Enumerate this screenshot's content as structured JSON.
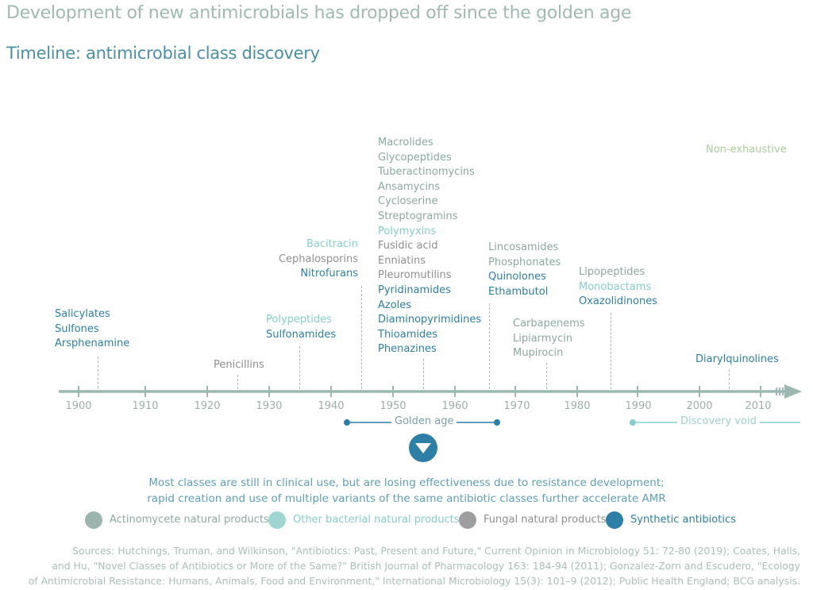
{
  "title": "Development of new antimicrobials has dropped off since the golden age",
  "subtitle": "Timeline: antimicrobial class discovery",
  "note": "Non-exhaustive",
  "colors": {
    "actinomycete": "#8aa9a3",
    "other_bacterial": "#86cdd0",
    "fungal": "#8f8f8f",
    "synthetic": "#2d7fa6",
    "axis": "#9bb8b2",
    "golden": "#2d7fa6",
    "void": "#86cdd0"
  },
  "timeline": {
    "years": [
      "1900",
      "1910",
      "1920",
      "1930",
      "1940",
      "1950",
      "1960",
      "1970",
      "1980",
      "1990",
      "2000",
      "2010"
    ],
    "groups": [
      {
        "classes": [
          {
            "name": "Salicylates",
            "type": "synthetic"
          },
          {
            "name": "Sulfones",
            "type": "synthetic"
          },
          {
            "name": "Arsphenamine",
            "type": "synthetic"
          }
        ]
      },
      {
        "classes": [
          {
            "name": "Penicillins",
            "type": "fungal"
          }
        ]
      },
      {
        "classes": [
          {
            "name": "Polypeptides",
            "type": "other_bacterial"
          },
          {
            "name": "Sulfonamides",
            "type": "synthetic"
          }
        ]
      },
      {
        "classes": [
          {
            "name": "Bacitracin",
            "type": "other_bacterial"
          },
          {
            "name": "Cephalosporins",
            "type": "fungal"
          },
          {
            "name": "Nitrofurans",
            "type": "synthetic"
          }
        ]
      },
      {
        "classes": [
          {
            "name": "Macrolides",
            "type": "actinomycete"
          },
          {
            "name": "Glycopeptides",
            "type": "actinomycete"
          },
          {
            "name": "Tuberactinomycins",
            "type": "actinomycete"
          },
          {
            "name": "Ansamycins",
            "type": "actinomycete"
          },
          {
            "name": "Cycloserine",
            "type": "actinomycete"
          },
          {
            "name": "Streptogramins",
            "type": "actinomycete"
          },
          {
            "name": "Polymyxins",
            "type": "other_bacterial"
          },
          {
            "name": "Fusidic acid",
            "type": "fungal"
          },
          {
            "name": "Enniatins",
            "type": "fungal"
          },
          {
            "name": "Pleuromutilins",
            "type": "fungal"
          },
          {
            "name": "Pyridinamides",
            "type": "synthetic"
          },
          {
            "name": "Azoles",
            "type": "synthetic"
          },
          {
            "name": "Diaminopyrimidines",
            "type": "synthetic"
          },
          {
            "name": "Thioamides",
            "type": "synthetic"
          },
          {
            "name": "Phenazines",
            "type": "synthetic"
          }
        ]
      },
      {
        "classes": [
          {
            "name": "Lincosamides",
            "type": "actinomycete"
          },
          {
            "name": "Phosphonates",
            "type": "actinomycete"
          },
          {
            "name": "Quinolones",
            "type": "synthetic"
          },
          {
            "name": "Ethambutol",
            "type": "synthetic"
          }
        ]
      },
      {
        "classes": [
          {
            "name": "Carbapenems",
            "type": "actinomycete"
          },
          {
            "name": "Lipiarmycin",
            "type": "actinomycete"
          },
          {
            "name": "Mupirocin",
            "type": "actinomycete"
          }
        ]
      },
      {
        "classes": [
          {
            "name": "Lipopeptides",
            "type": "actinomycete"
          },
          {
            "name": "Monobactams",
            "type": "other_bacterial"
          },
          {
            "name": "Oxazolidinones",
            "type": "synthetic"
          }
        ]
      },
      {
        "classes": [
          {
            "name": "Diarylquinolines",
            "type": "synthetic"
          }
        ]
      }
    ],
    "golden_age": {
      "label": "Golden age"
    },
    "discovery_void": {
      "label": "Discovery void"
    }
  },
  "conclusion": {
    "line1": "Most classes are still in clinical use, but are losing effectiveness due to resistance development;",
    "line2": "rapid creation and use of multiple variants of the same antibiotic classes further accelerate AMR"
  },
  "legend": [
    {
      "label": "Actinomycete natural products",
      "color": "#9bb4ae"
    },
    {
      "label": "Other bacterial natural products",
      "color": "#9fd6d3"
    },
    {
      "label": "Fungal natural products",
      "color": "#9e9e9e"
    },
    {
      "label": "Synthetic antibiotics",
      "color": "#2d7fa6"
    }
  ],
  "sources": {
    "line1": "Sources: Hutchings, Truman, and Wilkinson, \"Antibiotics: Past, Present and Future,\" Current Opinion in Microbiology 51: 72-80 (2019); Coates, Halls,",
    "line2": "and Hu, \"Novel Classes of Antibiotics or More of the Same?\" British Journal of Pharmacology 163: 184-94 (2011); Gonzalez-Zorn and Escudero, \"Ecology",
    "line3": "of Antimicrobial Resistance: Humans, Animals, Food and Environment,\" International Microbiology 15(3): 101–9 (2012); Public Health England; BCG analysis."
  }
}
